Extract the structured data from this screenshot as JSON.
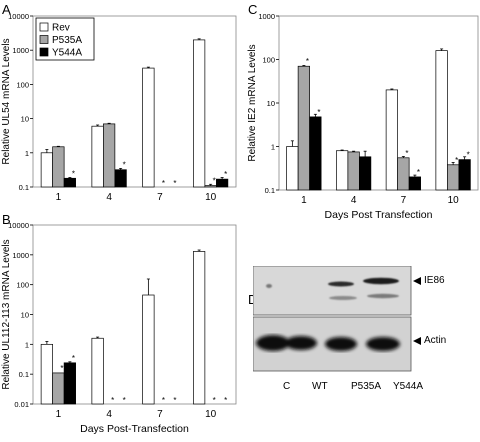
{
  "panels": {
    "A": {
      "letter": "A"
    },
    "B": {
      "letter": "B"
    },
    "C": {
      "letter": "C"
    },
    "D": {
      "letter": "D",
      "bands": [
        "IE86",
        "Actin"
      ],
      "lanes": [
        "C",
        "WT",
        "P535A",
        "Y544A"
      ],
      "colors": {
        "ie86_top": "#dcdcdc",
        "ie86_bottom": "#cfcfcf",
        "actin_top": "#d9d9d9",
        "actin_bottom": "#c8c8c8",
        "band": "#1a1a1a"
      }
    }
  },
  "chart_data": [
    {
      "type": "bar",
      "panel": "A",
      "ylabel": "Relative UL54 mRNA Levels",
      "xlabel": "",
      "categories": [
        "1",
        "4",
        "7",
        "10"
      ],
      "yscale": "log",
      "ylim": [
        0.1,
        10000
      ],
      "yticks": [
        "0.1",
        "1",
        "10",
        "100",
        "1000",
        "10000"
      ],
      "legend": "top-left",
      "series": [
        {
          "name": "Rev",
          "color": "#ffffff",
          "values": [
            1.0,
            6.0,
            300,
            2000
          ],
          "errors": [
            0.25,
            0.5,
            20,
            150
          ],
          "stars": [
            false,
            false,
            false,
            false
          ]
        },
        {
          "name": "P535A",
          "color": "#a6a6a6",
          "values": [
            1.5,
            7.0,
            null,
            0.11
          ],
          "errors": [
            0.05,
            0.3,
            0,
            0.01
          ],
          "stars": [
            false,
            false,
            true,
            true
          ]
        },
        {
          "name": "Y544A",
          "color": "#000000",
          "values": [
            0.18,
            0.32,
            null,
            0.17
          ],
          "errors": [
            0.01,
            0.03,
            0,
            0.02
          ],
          "stars": [
            true,
            true,
            true,
            true
          ]
        }
      ]
    },
    {
      "type": "bar",
      "panel": "B",
      "ylabel": "Relative UL112-113 mRNA Levels",
      "xlabel": "Days Post-Transfection",
      "categories": [
        "1",
        "4",
        "7",
        "10"
      ],
      "yscale": "log",
      "ylim": [
        0.01,
        10000
      ],
      "yticks": [
        "0.01",
        "0.1",
        "1",
        "10",
        "100",
        "1000",
        "10000"
      ],
      "series": [
        {
          "name": "Rev",
          "color": "#ffffff",
          "values": [
            1.0,
            1.6,
            45,
            1300
          ],
          "errors": [
            0.25,
            0.15,
            110,
            150
          ],
          "stars": [
            false,
            false,
            false,
            false
          ]
        },
        {
          "name": "P535A",
          "color": "#a6a6a6",
          "values": [
            0.11,
            null,
            null,
            null
          ],
          "errors": [
            0,
            0,
            0,
            0
          ],
          "stars": [
            true,
            true,
            true,
            true
          ]
        },
        {
          "name": "Y544A",
          "color": "#000000",
          "values": [
            0.24,
            null,
            null,
            null
          ],
          "errors": [
            0.02,
            0,
            0,
            0
          ],
          "stars": [
            true,
            true,
            true,
            true
          ]
        }
      ]
    },
    {
      "type": "bar",
      "panel": "C",
      "ylabel": "Relative IE2 mRNA Levels",
      "xlabel": "Days Post Transfection",
      "categories": [
        "1",
        "4",
        "7",
        "10"
      ],
      "yscale": "log",
      "ylim": [
        0.1,
        1000
      ],
      "yticks": [
        "0.1",
        "1",
        "10",
        "100",
        "1000"
      ],
      "series": [
        {
          "name": "Rev",
          "color": "#ffffff",
          "values": [
            1.0,
            0.8,
            20,
            160
          ],
          "errors": [
            0.35,
            0.03,
            1.0,
            15
          ],
          "stars": [
            false,
            false,
            false,
            false
          ]
        },
        {
          "name": "P535A",
          "color": "#a6a6a6",
          "values": [
            70,
            0.75,
            0.55,
            0.38
          ],
          "errors": [
            3,
            0.03,
            0.04,
            0.05
          ],
          "stars": [
            true,
            false,
            true,
            true
          ]
        },
        {
          "name": "Y544A",
          "color": "#000000",
          "values": [
            4.8,
            0.58,
            0.2,
            0.5
          ],
          "errors": [
            0.7,
            0.2,
            0.02,
            0.08
          ],
          "stars": [
            true,
            false,
            true,
            true
          ]
        }
      ]
    }
  ]
}
